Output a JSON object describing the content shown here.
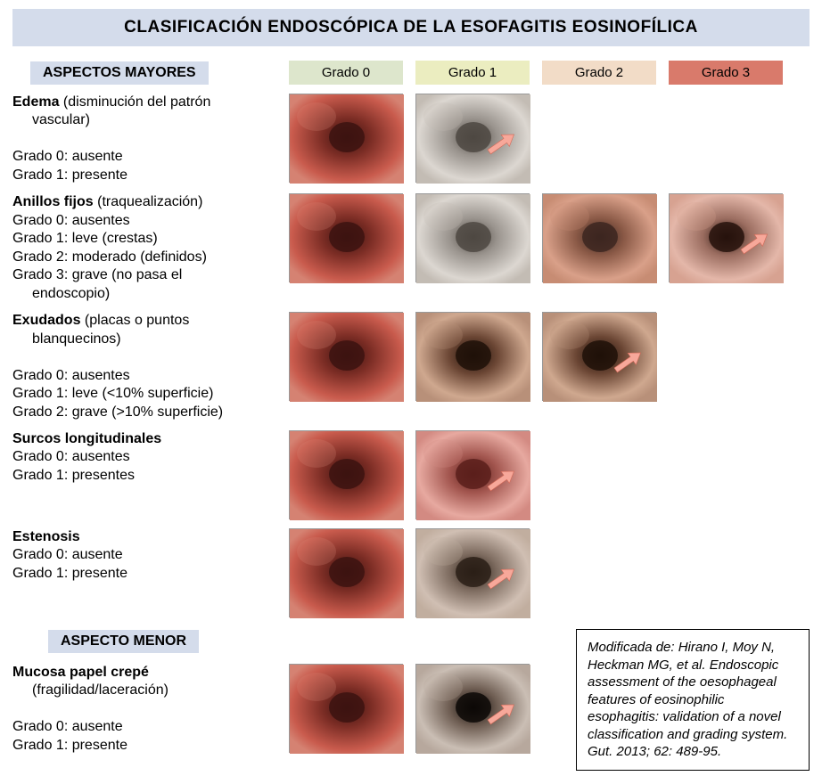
{
  "title": "CLASIFICACIÓN ENDOSCÓPICA DE LA ESOFAGITIS EOSINOFÍLICA",
  "section_major": "ASPECTOS MAYORES",
  "section_minor": "ASPECTO MENOR",
  "grade_headers": [
    "Grado 0",
    "Grado 1",
    "Grado 2",
    "Grado 3"
  ],
  "grade_colors": [
    "#dde6cc",
    "#ebedc0",
    "#f2dcc7",
    "#d97a6b"
  ],
  "rows": [
    {
      "name": "Edema",
      "note": "(disminución del patrón vascular)",
      "note_indent": true,
      "lines": [
        "Grado 0: ausente",
        "Grado 1: presente"
      ],
      "grades": 2,
      "arrow": [
        false,
        true
      ]
    },
    {
      "name": "Anillos fijos",
      "note": "(traquealización)",
      "note_indent": false,
      "lines": [
        "Grado 0: ausentes",
        "Grado 1: leve (crestas)",
        "Grado 2: moderado (definidos)",
        "Grado 3: grave (no pasa el endoscopio)"
      ],
      "last_indent": true,
      "grades": 4,
      "arrow": [
        false,
        false,
        false,
        true
      ]
    },
    {
      "name": "Exudados",
      "note": "(placas o puntos blanquecinos)",
      "note_indent": true,
      "lines": [
        "Grado 0: ausentes",
        "Grado 1: leve (<10% superficie)",
        "Grado 2: grave (>10% superficie)"
      ],
      "grades": 3,
      "arrow": [
        false,
        false,
        true
      ]
    },
    {
      "name": "Surcos longitudinales",
      "note": "",
      "lines": [
        "Grado 0: ausentes",
        "Grado 1: presentes"
      ],
      "grades": 2,
      "arrow": [
        false,
        true
      ]
    },
    {
      "name": "Estenosis",
      "note": "",
      "lines": [
        "Grado 0: ausente",
        "Grado 1: presente"
      ],
      "grades": 2,
      "arrow": [
        false,
        true
      ]
    },
    {
      "name": "Mucosa papel crepé",
      "note": "(fragilidad/laceración)",
      "note_indent": true,
      "lines": [
        "Grado 0: ausente",
        "Grado 1: presente"
      ],
      "grades": 2,
      "arrow": [
        false,
        true
      ]
    }
  ],
  "minor_row_index": 5,
  "citation": "Modificada de: Hirano I, Moy N, Heckman MG, et al. Endoscopic assessment of the oesophageal features of eosinophilic esophagitis: validation of a novel classification and grading system. Gut. 2013; 62: 489-95.",
  "title_bg": "#d4dceb",
  "label_bg": "#d4dceb",
  "thumb_palettes": {
    "normal": [
      "#c95b4d",
      "#7a2c24",
      "#3c1310",
      "#d58272"
    ],
    "pale": [
      "#dcd7d1",
      "#9a948e",
      "#4e4842",
      "#c3bcb4"
    ],
    "rings": [
      "#d9a089",
      "#8a5946",
      "#3c2620",
      "#c78c73"
    ],
    "severe": [
      "#e4b7a9",
      "#9b6d60",
      "#26120c",
      "#d7a291"
    ],
    "exudate": [
      "#cfa88f",
      "#6b4634",
      "#1f1008",
      "#b89079"
    ],
    "furrow": [
      "#e7a9a0",
      "#a2554e",
      "#5a1f1b",
      "#d38a82"
    ],
    "stenosis": [
      "#d0bfb3",
      "#7e6c60",
      "#2a1e16",
      "#c1ae9f"
    ],
    "crepe": [
      "#cabeb4",
      "#6e5d52",
      "#0c0806",
      "#b7a89d"
    ]
  },
  "row_palettes": [
    [
      "normal",
      "pale"
    ],
    [
      "normal",
      "pale",
      "rings",
      "severe"
    ],
    [
      "normal",
      "exudate",
      "exudate"
    ],
    [
      "normal",
      "furrow"
    ],
    [
      "normal",
      "stenosis"
    ],
    [
      "normal",
      "crepe"
    ]
  ]
}
